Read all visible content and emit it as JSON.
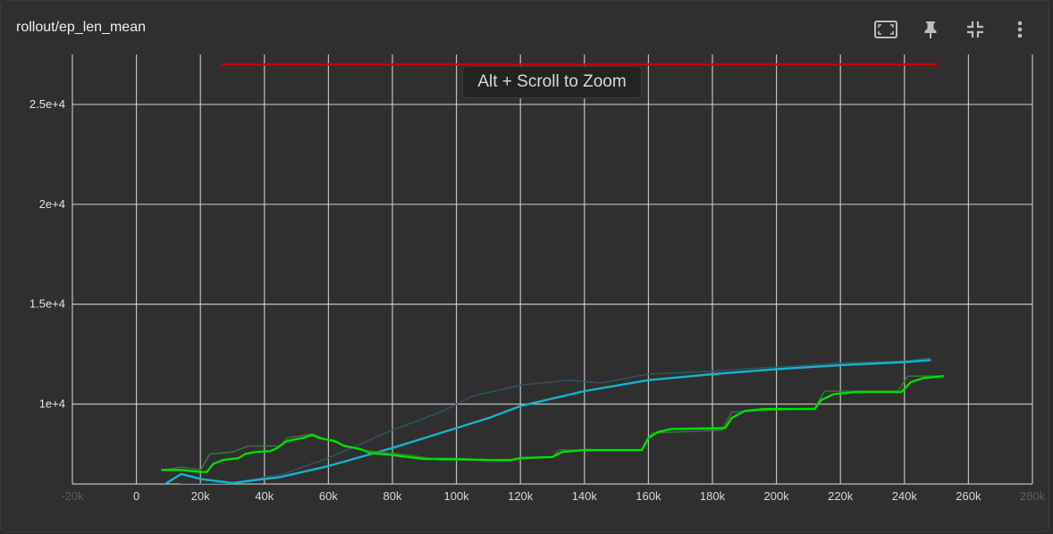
{
  "title": "rollout/ep_len_mean",
  "toolbar": {
    "icons": [
      "fit-domain-icon",
      "pin-icon",
      "collapse-icon",
      "more-vert-icon"
    ]
  },
  "zoom_hint": "Alt + Scroll to Zoom",
  "colors": {
    "grid": "#d9d9d9",
    "series_blue": "#12b5cb",
    "series_blue_raw": "#2d5a5e",
    "series_green": "#00e000",
    "series_green_raw": "#3a7a3a",
    "series_red": "#cc0000"
  },
  "chart_data": {
    "type": "line",
    "title": "rollout/ep_len_mean",
    "xlabel": "",
    "ylabel": "",
    "xlim": [
      -20000,
      280000
    ],
    "ylim": [
      6000,
      27500
    ],
    "x_ticks": [
      {
        "value": -20000,
        "label": "-20k"
      },
      {
        "value": 0,
        "label": "0"
      },
      {
        "value": 20000,
        "label": "20k"
      },
      {
        "value": 40000,
        "label": "40k"
      },
      {
        "value": 60000,
        "label": "60k"
      },
      {
        "value": 80000,
        "label": "80k"
      },
      {
        "value": 100000,
        "label": "100k"
      },
      {
        "value": 120000,
        "label": "120k"
      },
      {
        "value": 140000,
        "label": "140k"
      },
      {
        "value": 160000,
        "label": "160k"
      },
      {
        "value": 180000,
        "label": "180k"
      },
      {
        "value": 200000,
        "label": "200k"
      },
      {
        "value": 220000,
        "label": "220k"
      },
      {
        "value": 240000,
        "label": "240k"
      },
      {
        "value": 260000,
        "label": "260k"
      },
      {
        "value": 280000,
        "label": "280k"
      }
    ],
    "y_ticks": [
      {
        "value": 10000,
        "label": "1e+4"
      },
      {
        "value": 15000,
        "label": "1.5e+4"
      },
      {
        "value": 20000,
        "label": "2e+4"
      },
      {
        "value": 25000,
        "label": "2.5e+4"
      }
    ],
    "grid": true,
    "series": [
      {
        "color": "#cc0000",
        "raw": false,
        "points": [
          [
            27000,
            27000
          ],
          [
            250000,
            27000
          ]
        ]
      },
      {
        "color": "#2d5a5e",
        "raw": true,
        "points": [
          [
            5000,
            5000
          ],
          [
            14000,
            6000
          ],
          [
            20000,
            6000
          ],
          [
            30000,
            6050
          ],
          [
            46000,
            6500
          ],
          [
            60000,
            7300
          ],
          [
            80000,
            8700
          ],
          [
            95000,
            9600
          ],
          [
            105000,
            10400
          ],
          [
            120000,
            10950
          ],
          [
            135000,
            11200
          ],
          [
            145000,
            11050
          ],
          [
            160000,
            11500
          ],
          [
            180000,
            11650
          ],
          [
            200000,
            11850
          ],
          [
            220000,
            12050
          ],
          [
            240000,
            12150
          ],
          [
            248000,
            12300
          ]
        ]
      },
      {
        "color": "#12b5cb",
        "raw": false,
        "points": [
          [
            8000,
            5900
          ],
          [
            14000,
            6500
          ],
          [
            20000,
            6250
          ],
          [
            30000,
            6050
          ],
          [
            45000,
            6350
          ],
          [
            60000,
            6900
          ],
          [
            80000,
            7800
          ],
          [
            100000,
            8800
          ],
          [
            110000,
            9300
          ],
          [
            120000,
            9900
          ],
          [
            140000,
            10650
          ],
          [
            160000,
            11200
          ],
          [
            180000,
            11500
          ],
          [
            200000,
            11750
          ],
          [
            220000,
            11950
          ],
          [
            240000,
            12100
          ],
          [
            248000,
            12200
          ]
        ]
      },
      {
        "color": "#3a7a3a",
        "raw": true,
        "points": [
          [
            8000,
            6700
          ],
          [
            14000,
            6850
          ],
          [
            20000,
            6700
          ],
          [
            23000,
            7500
          ],
          [
            30000,
            7600
          ],
          [
            35000,
            7900
          ],
          [
            45000,
            7900
          ],
          [
            47000,
            8300
          ],
          [
            55000,
            8500
          ],
          [
            60000,
            8200
          ],
          [
            70000,
            7700
          ],
          [
            85000,
            7450
          ],
          [
            95000,
            7200
          ],
          [
            115000,
            7200
          ],
          [
            130000,
            7350
          ],
          [
            132000,
            7700
          ],
          [
            158000,
            7700
          ],
          [
            161000,
            8550
          ],
          [
            183000,
            8700
          ],
          [
            186000,
            9600
          ],
          [
            212000,
            9800
          ],
          [
            215000,
            10650
          ],
          [
            238000,
            10650
          ],
          [
            241000,
            11400
          ],
          [
            251000,
            11400
          ]
        ]
      },
      {
        "color": "#00e000",
        "raw": false,
        "points": [
          [
            8000,
            6700
          ],
          [
            14000,
            6700
          ],
          [
            20000,
            6600
          ],
          [
            22000,
            6600
          ],
          [
            24000,
            7000
          ],
          [
            27000,
            7200
          ],
          [
            32000,
            7300
          ],
          [
            34000,
            7500
          ],
          [
            37000,
            7600
          ],
          [
            42000,
            7650
          ],
          [
            44000,
            7800
          ],
          [
            47000,
            8150
          ],
          [
            52000,
            8300
          ],
          [
            55000,
            8450
          ],
          [
            57000,
            8300
          ],
          [
            62000,
            8150
          ],
          [
            65000,
            7900
          ],
          [
            70000,
            7750
          ],
          [
            73000,
            7550
          ],
          [
            80000,
            7450
          ],
          [
            85000,
            7350
          ],
          [
            90000,
            7250
          ],
          [
            100000,
            7250
          ],
          [
            110000,
            7200
          ],
          [
            117000,
            7200
          ],
          [
            120000,
            7300
          ],
          [
            130000,
            7350
          ],
          [
            133000,
            7600
          ],
          [
            140000,
            7700
          ],
          [
            158000,
            7700
          ],
          [
            160000,
            8300
          ],
          [
            163000,
            8600
          ],
          [
            167000,
            8750
          ],
          [
            182000,
            8800
          ],
          [
            184000,
            8800
          ],
          [
            186000,
            9300
          ],
          [
            190000,
            9650
          ],
          [
            196000,
            9750
          ],
          [
            212000,
            9750
          ],
          [
            214000,
            10200
          ],
          [
            218000,
            10500
          ],
          [
            225000,
            10600
          ],
          [
            239000,
            10600
          ],
          [
            242000,
            11100
          ],
          [
            246000,
            11300
          ],
          [
            252000,
            11400
          ]
        ]
      }
    ]
  }
}
